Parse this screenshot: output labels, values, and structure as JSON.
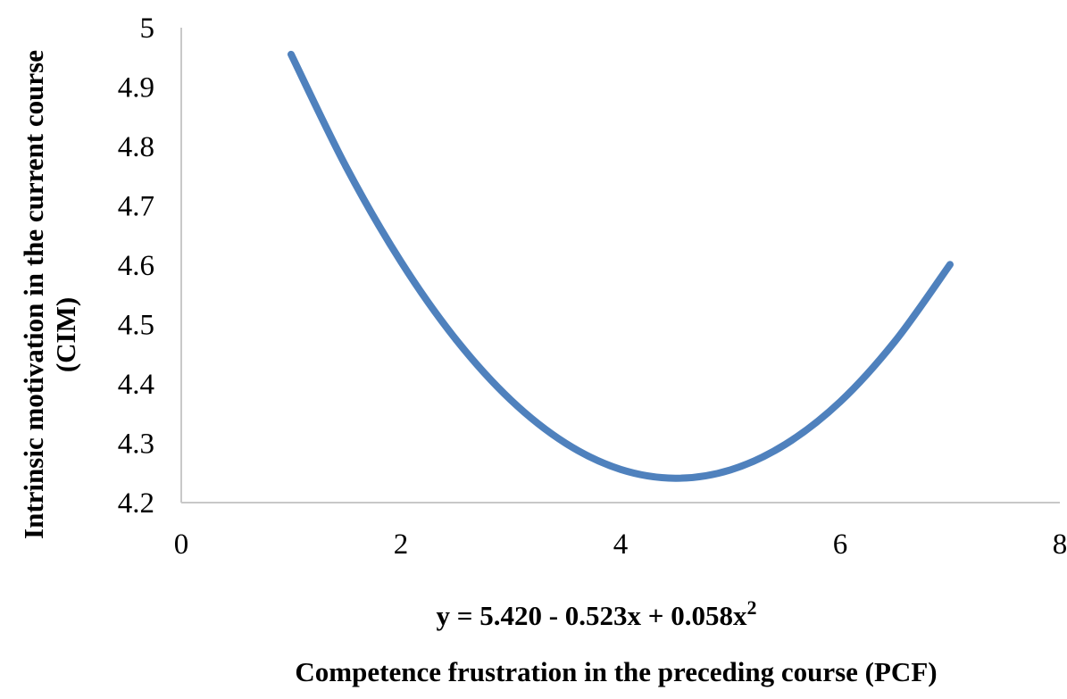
{
  "chart_data": {
    "type": "line",
    "title": "",
    "xlabel": "Competence frustration in the preceding course (PCF)",
    "ylabel_lines": [
      "Intrinsic motivation in the current course",
      "(CIM)"
    ],
    "equation": {
      "base": "y = 5.420 - 0.523x + 0.058x",
      "superscript": "2"
    },
    "xlim": [
      0,
      8
    ],
    "ylim": [
      4.2,
      5
    ],
    "x_ticks": [
      "0",
      "2",
      "4",
      "6",
      "8"
    ],
    "y_ticks": [
      "4.2",
      "4.3",
      "4.4",
      "4.5",
      "4.6",
      "4.7",
      "4.8",
      "4.9",
      "5"
    ],
    "grid": false,
    "legend": "none",
    "series": [
      {
        "color": "#4f81bd",
        "x": [
          1,
          1.5,
          2,
          2.5,
          3,
          3.5,
          4,
          4.5,
          5,
          5.5,
          6,
          6.5,
          7
        ],
        "y": [
          4.955,
          4.766,
          4.606,
          4.475,
          4.373,
          4.3,
          4.256,
          4.241,
          4.255,
          4.298,
          4.37,
          4.472,
          4.601
        ]
      }
    ]
  }
}
